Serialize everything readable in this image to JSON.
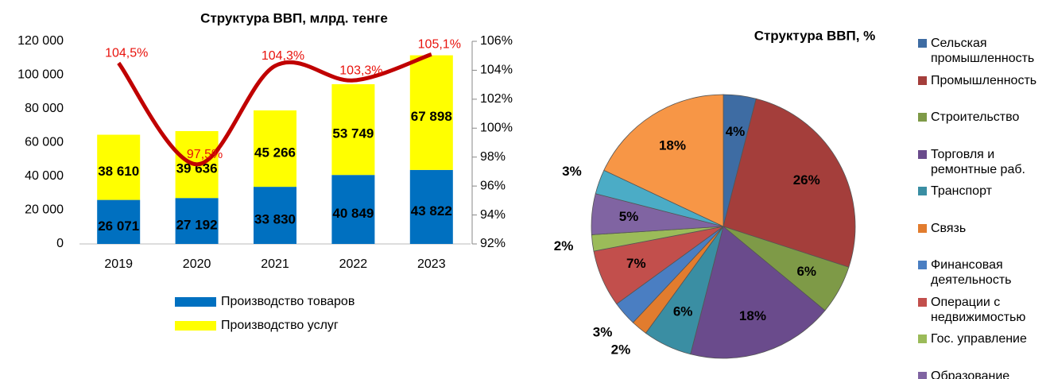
{
  "chart_data": [
    {
      "type": "bar",
      "title": "Структура ВВП, млрд. тенге",
      "categories": [
        "2019",
        "2020",
        "2021",
        "2022",
        "2023"
      ],
      "series": [
        {
          "name": "Производство товаров",
          "color": "#0070c0",
          "values": [
            26071,
            27192,
            33830,
            40849,
            43822
          ],
          "value_labels": [
            "26 071",
            "27 192",
            "33 830",
            "40 849",
            "43 822"
          ]
        },
        {
          "name": "Производство услуг",
          "color": "#ffff00",
          "values": [
            38610,
            39636,
            45266,
            53749,
            67898
          ],
          "value_labels": [
            "38 610",
            "39 636",
            "45 266",
            "53 749",
            "67 898"
          ]
        },
        {
          "type": "line",
          "axis": "y2",
          "color": "#c00000",
          "values": [
            104.5,
            97.5,
            104.3,
            103.3,
            105.1
          ],
          "value_labels": [
            "104,5%",
            "97,5%",
            "104,3%",
            "103,3%",
            "105,1%"
          ]
        }
      ],
      "stacked": true,
      "ylim": [
        0,
        120000
      ],
      "yticks": [
        0,
        {
          "value": 20000,
          "label": "20 000"
        },
        {
          "value": 40000,
          "label": "40 000"
        },
        {
          "value": 60000,
          "label": "60 000"
        },
        {
          "value": 80000,
          "label": "80 000"
        },
        {
          "value": 100000,
          "label": "100 000"
        },
        {
          "value": 120000,
          "label": "120 000"
        }
      ],
      "y2lim": [
        92,
        106
      ],
      "y2ticks": [
        {
          "value": 92,
          "label": "92%"
        },
        {
          "value": 94,
          "label": "94%"
        },
        {
          "value": 96,
          "label": "96%"
        },
        {
          "value": 98,
          "label": "98%"
        },
        {
          "value": 100,
          "label": "100%"
        },
        {
          "value": 102,
          "label": "102%"
        },
        {
          "value": 104,
          "label": "104%"
        },
        {
          "value": 106,
          "label": "106%"
        }
      ],
      "legend": "bottom"
    },
    {
      "type": "pie",
      "title": "Структура ВВП, %",
      "categories": [
        "Сельская промышленность",
        "Промышленность",
        "Строительство",
        "Торговля и ремонтные раб.",
        "Транспорт",
        "Связь",
        "Финансовая деятельность",
        "Операции с недвижимостью",
        "Гос. управление",
        "Образование",
        null,
        null
      ],
      "values": [
        4,
        26,
        6,
        18,
        6,
        2,
        3,
        7,
        2,
        5,
        3,
        18
      ],
      "value_labels": [
        "4%",
        "26%",
        "6%",
        "18%",
        "6%",
        "2%",
        "3%",
        "7%",
        "2%",
        "5%",
        "3%",
        "18%"
      ],
      "colors": [
        "#3e6ca3",
        "#a43e3b",
        "#7e9a47",
        "#6a4b8c",
        "#3a8ea3",
        "#e27c2e",
        "#4a7ec2",
        "#c24f4c",
        "#9bbb59",
        "#8064a2",
        "#4bacc6",
        "#f79646"
      ],
      "legend": "right"
    }
  ]
}
